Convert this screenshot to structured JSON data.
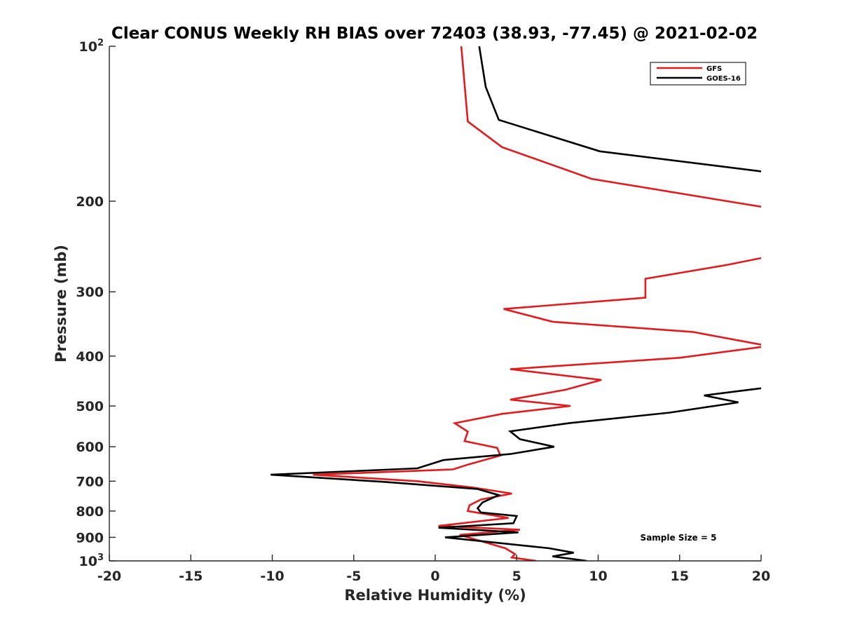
{
  "chart_data": {
    "type": "line",
    "title": "Clear CONUS Weekly RH BIAS over 72403 (38.93, -77.45) @ 2021-02-02",
    "xlabel": "Relative Humidity (%)",
    "ylabel": "Pressure (mb)",
    "xlim": [
      -20,
      20
    ],
    "ylim": [
      100,
      1000
    ],
    "y_scale": "log",
    "y_reversed": true,
    "grid": false,
    "legend_position": "top-right",
    "x_ticks": [
      "-20",
      "-15",
      "-10",
      "-5",
      "0",
      "5",
      "10",
      "15",
      "20"
    ],
    "y_ticks": [
      {
        "value": 100,
        "base": "10",
        "exp": "2"
      },
      {
        "value": 200,
        "base": "200",
        "exp": ""
      },
      {
        "value": 300,
        "base": "300",
        "exp": ""
      },
      {
        "value": 400,
        "base": "400",
        "exp": ""
      },
      {
        "value": 500,
        "base": "500",
        "exp": ""
      },
      {
        "value": 600,
        "base": "600",
        "exp": ""
      },
      {
        "value": 700,
        "base": "700",
        "exp": ""
      },
      {
        "value": 800,
        "base": "800",
        "exp": ""
      },
      {
        "value": 900,
        "base": "900",
        "exp": ""
      },
      {
        "value": 1000,
        "base": "10",
        "exp": "3"
      }
    ],
    "series": [
      {
        "name": "GFS",
        "color": "#e41a1c",
        "points": [
          [
            1.6,
            100
          ],
          [
            2.0,
            140
          ],
          [
            4.1,
            157
          ],
          [
            9.6,
            181
          ],
          [
            17.5,
            199
          ],
          [
            20.0,
            205
          ],
          null,
          [
            20.0,
            258
          ],
          [
            17.9,
            266
          ],
          [
            12.9,
            283
          ],
          [
            12.9,
            308
          ],
          [
            4.2,
            324
          ],
          [
            7.2,
            343
          ],
          [
            15.8,
            359
          ],
          [
            20.0,
            380
          ],
          null,
          [
            20.0,
            384
          ],
          [
            15.0,
            403
          ],
          [
            4.6,
            424
          ],
          [
            10.2,
            445
          ],
          [
            8.0,
            465
          ],
          [
            4.6,
            486
          ],
          [
            8.3,
            500
          ],
          [
            4.1,
            518
          ],
          [
            1.2,
            540
          ],
          [
            2.0,
            561
          ],
          [
            1.8,
            585
          ],
          [
            3.8,
            603
          ],
          [
            4.0,
            624
          ],
          [
            2.0,
            650
          ],
          [
            1.1,
            664
          ],
          [
            -7.5,
            680
          ],
          [
            -1.1,
            700
          ],
          [
            2.3,
            720
          ],
          [
            4.7,
            740
          ],
          [
            2.8,
            760
          ],
          [
            2.1,
            780
          ],
          [
            2.0,
            800
          ],
          [
            4.5,
            825
          ],
          [
            0.2,
            855
          ],
          [
            5.2,
            870
          ],
          [
            1.5,
            890
          ],
          [
            3.3,
            925
          ],
          [
            4.3,
            945
          ],
          [
            4.9,
            970
          ],
          [
            4.7,
            985
          ],
          [
            6.2,
            1000
          ]
        ]
      },
      {
        "name": "GOES-16",
        "color": "#000000",
        "points": [
          [
            2.7,
            100
          ],
          [
            3.1,
            120
          ],
          [
            3.9,
            139
          ],
          [
            10.1,
            160
          ],
          [
            20.0,
            175
          ],
          null,
          [
            20.0,
            462
          ],
          [
            16.5,
            477
          ],
          [
            18.6,
            492
          ],
          [
            14.4,
            515
          ],
          [
            8.2,
            540
          ],
          [
            4.6,
            560
          ],
          [
            5.2,
            580
          ],
          [
            7.3,
            600
          ],
          [
            4.6,
            620
          ],
          [
            0.5,
            637
          ],
          [
            -1.1,
            661
          ],
          [
            -10.1,
            680
          ],
          [
            -3.2,
            702
          ],
          [
            2.6,
            725
          ],
          [
            3.9,
            745
          ],
          [
            2.9,
            770
          ],
          [
            2.6,
            790
          ],
          [
            2.8,
            805
          ],
          [
            5.0,
            818
          ],
          [
            4.8,
            845
          ],
          [
            0.2,
            862
          ],
          [
            5.1,
            880
          ],
          [
            0.6,
            900
          ],
          [
            7.0,
            945
          ],
          [
            8.5,
            964
          ],
          [
            7.2,
            980
          ],
          [
            9.3,
            1000
          ]
        ]
      }
    ],
    "annotation": "Sample Size = 5"
  }
}
